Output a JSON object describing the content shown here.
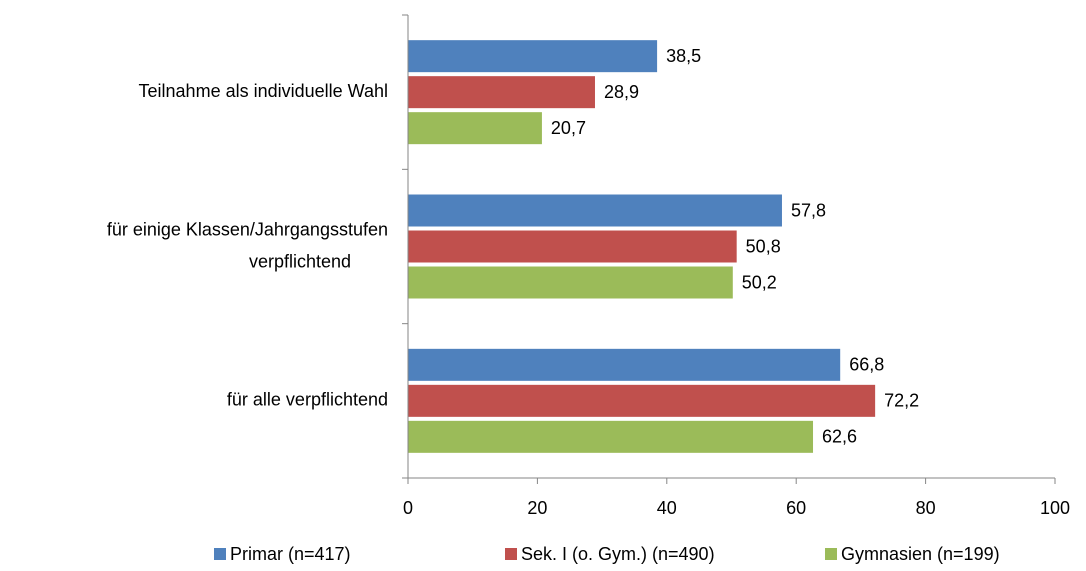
{
  "chart_data": {
    "type": "bar",
    "orientation": "horizontal",
    "categories": [
      "Teilnahme als individuelle Wahl",
      "für einige Klassen/Jahrgangsstufen verpflichtend",
      "für alle verpflichtend"
    ],
    "series": [
      {
        "name": "Primar (n=417)",
        "color": "#4f81bd",
        "values": [
          38.5,
          57.8,
          66.8
        ],
        "value_labels": [
          "38,5",
          "57,8",
          "66,8"
        ]
      },
      {
        "name": "Sek. I (o. Gym.) (n=490)",
        "color": "#c0504d",
        "values": [
          28.9,
          50.8,
          72.2
        ],
        "value_labels": [
          "28,9",
          "50,8",
          "72,2"
        ]
      },
      {
        "name": "Gymnasien (n=199)",
        "color": "#9bbb59",
        "values": [
          20.7,
          50.2,
          62.6
        ],
        "value_labels": [
          "20,7",
          "50,2",
          "62,6"
        ]
      }
    ],
    "xlim": [
      0,
      100
    ],
    "xticks": [
      0,
      20,
      40,
      60,
      80,
      100
    ],
    "grid": false,
    "legend": "bottom"
  }
}
